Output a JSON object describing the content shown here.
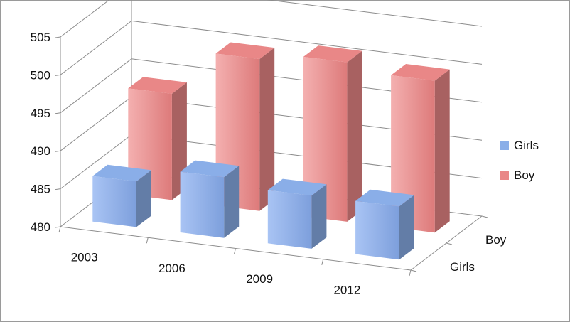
{
  "chart_data": {
    "type": "bar",
    "categories": [
      "2003",
      "2006",
      "2009",
      "2012"
    ],
    "series": [
      {
        "name": "Girls",
        "values": [
          486,
          488,
          487,
          487
        ],
        "color": "#8aaee8"
      },
      {
        "name": "Boy",
        "values": [
          494,
          500,
          501,
          500
        ],
        "color": "#e98787"
      }
    ],
    "y_ticks": [
      "480",
      "485",
      "490",
      "495",
      "500",
      "505"
    ],
    "ylim": [
      480,
      505
    ],
    "depth_labels": [
      "Boy",
      "Girls"
    ],
    "legend": {
      "position": "right",
      "entries": [
        "Girls",
        "Boy"
      ]
    },
    "grid": true,
    "title": "",
    "xlabel": "",
    "ylabel": ""
  }
}
